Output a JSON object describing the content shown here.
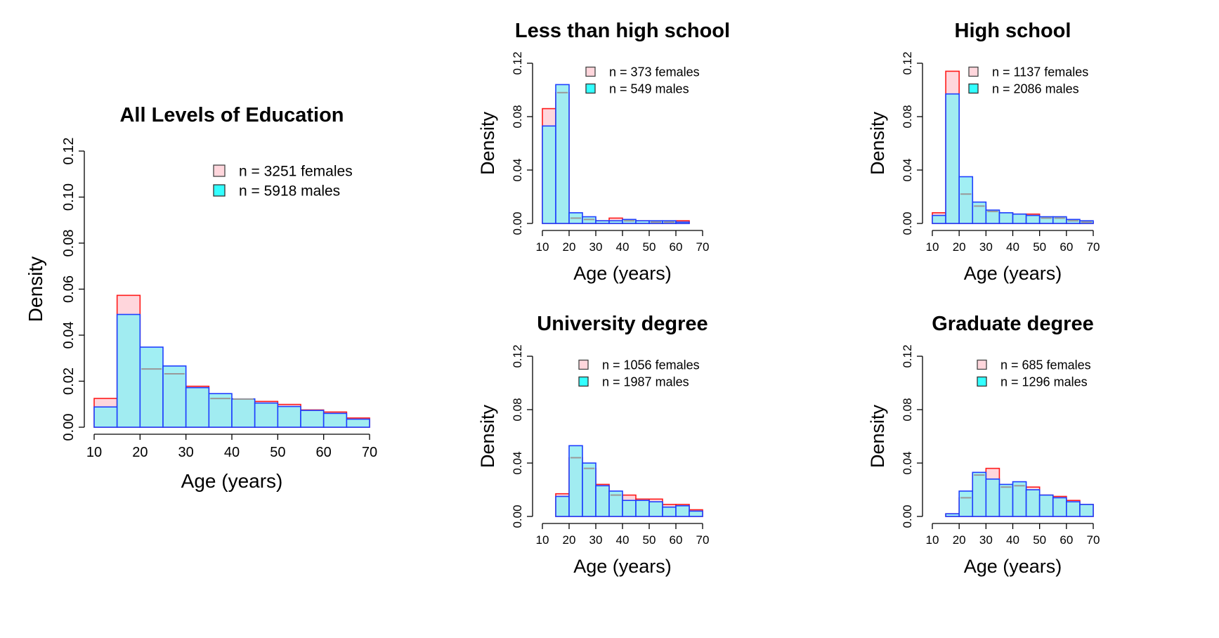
{
  "colors": {
    "female_fill": "#ffd6dc",
    "female_stroke": "#ff1a1a",
    "male_fill": "#99eef2",
    "male_stroke": "#1f3fff",
    "overlap_line": "#999999",
    "legend_male_fill": "#33ffff"
  },
  "chart_data": [
    {
      "type": "bar",
      "title": "All Levels of Education",
      "xlabel": "Age (years)",
      "ylabel": "Density",
      "bin_edges": [
        10,
        15,
        20,
        25,
        30,
        35,
        40,
        45,
        50,
        55,
        60,
        65,
        70
      ],
      "xticks": [
        "10",
        "20",
        "30",
        "40",
        "50",
        "60",
        "70"
      ],
      "yticks": [
        "0.00",
        "0.02",
        "0.04",
        "0.06",
        "0.08",
        "0.10",
        "0.12"
      ],
      "xlim": [
        10,
        70
      ],
      "ylim": [
        0,
        0.12
      ],
      "legend": "top-right",
      "grid": false,
      "series": [
        {
          "name": "n = 3251 females",
          "values": [
            0.0125,
            0.0573,
            0.0253,
            0.0232,
            0.0178,
            0.0125,
            0.0122,
            0.0112,
            0.0099,
            0.0075,
            0.0066,
            0.004
          ]
        },
        {
          "name": "n = 5918 males",
          "values": [
            0.0088,
            0.049,
            0.0348,
            0.0266,
            0.0172,
            0.0146,
            0.0123,
            0.0105,
            0.009,
            0.0073,
            0.006,
            0.0035
          ]
        }
      ]
    },
    {
      "type": "bar",
      "title": "Less than high school",
      "xlabel": "Age (years)",
      "ylabel": "Density",
      "bin_edges": [
        10,
        15,
        20,
        25,
        30,
        35,
        40,
        45,
        50,
        55,
        60,
        65
      ],
      "xticks": [
        "10",
        "20",
        "30",
        "40",
        "50",
        "60",
        "70"
      ],
      "yticks": [
        "0.00",
        "0.04",
        "0.08",
        "0.12"
      ],
      "xlim": [
        10,
        70
      ],
      "ylim": [
        0,
        0.12
      ],
      "legend": "top-right",
      "grid": false,
      "series": [
        {
          "name": "n = 373 females",
          "values": [
            0.086,
            0.098,
            0.004,
            0.003,
            0.002,
            0.004,
            0.002,
            0.002,
            0.001,
            0.001,
            0.002
          ]
        },
        {
          "name": "n = 549 males",
          "values": [
            0.073,
            0.104,
            0.008,
            0.005,
            0.002,
            0.002,
            0.003,
            0.002,
            0.002,
            0.002,
            0.001
          ]
        }
      ]
    },
    {
      "type": "bar",
      "title": "High school",
      "xlabel": "Age (years)",
      "ylabel": "Density",
      "bin_edges": [
        10,
        15,
        20,
        25,
        30,
        35,
        40,
        45,
        50,
        55,
        60,
        65,
        70
      ],
      "xticks": [
        "10",
        "20",
        "30",
        "40",
        "50",
        "60",
        "70"
      ],
      "yticks": [
        "0.00",
        "0.04",
        "0.08",
        "0.12"
      ],
      "xlim": [
        10,
        70
      ],
      "ylim": [
        0,
        0.12
      ],
      "legend": "top-right",
      "grid": false,
      "series": [
        {
          "name": "n = 1137 females",
          "values": [
            0.008,
            0.114,
            0.022,
            0.013,
            0.009,
            0.008,
            0.007,
            0.007,
            0.004,
            0.004,
            0.002,
            0.001
          ]
        },
        {
          "name": "n = 2086 males",
          "values": [
            0.006,
            0.097,
            0.035,
            0.016,
            0.01,
            0.008,
            0.007,
            0.006,
            0.005,
            0.005,
            0.003,
            0.002
          ]
        }
      ]
    },
    {
      "type": "bar",
      "title": "University degree",
      "xlabel": "Age (years)",
      "ylabel": "Density",
      "bin_edges": [
        15,
        20,
        25,
        30,
        35,
        40,
        45,
        50,
        55,
        60,
        65,
        70
      ],
      "xticks": [
        "10",
        "20",
        "30",
        "40",
        "50",
        "60",
        "70"
      ],
      "yticks": [
        "0.00",
        "0.04",
        "0.08",
        "0.12"
      ],
      "xlim": [
        10,
        70
      ],
      "ylim": [
        0,
        0.12
      ],
      "legend": "top-right",
      "grid": false,
      "series": [
        {
          "name": "n = 1056 females",
          "values": [
            0.017,
            0.044,
            0.036,
            0.024,
            0.016,
            0.016,
            0.013,
            0.013,
            0.009,
            0.009,
            0.005
          ]
        },
        {
          "name": "n = 1987 males",
          "values": [
            0.015,
            0.053,
            0.04,
            0.023,
            0.019,
            0.012,
            0.012,
            0.011,
            0.007,
            0.008,
            0.004
          ]
        }
      ]
    },
    {
      "type": "bar",
      "title": "Graduate degree",
      "xlabel": "Age (years)",
      "ylabel": "Density",
      "bin_edges": [
        15,
        20,
        25,
        30,
        35,
        40,
        45,
        50,
        55,
        60,
        65,
        70
      ],
      "xticks": [
        "10",
        "20",
        "30",
        "40",
        "50",
        "60",
        "70"
      ],
      "yticks": [
        "0.00",
        "0.04",
        "0.08",
        "0.12"
      ],
      "xlim": [
        10,
        70
      ],
      "ylim": [
        0,
        0.12
      ],
      "legend": "top-right",
      "grid": false,
      "series": [
        {
          "name": "n = 685 females",
          "values": [
            0.002,
            0.014,
            0.031,
            0.036,
            0.022,
            0.023,
            0.022,
            0.016,
            0.015,
            0.012,
            0.009
          ]
        },
        {
          "name": "n = 1296 males",
          "values": [
            0.002,
            0.019,
            0.033,
            0.028,
            0.024,
            0.026,
            0.02,
            0.016,
            0.014,
            0.011,
            0.009
          ]
        }
      ]
    }
  ]
}
